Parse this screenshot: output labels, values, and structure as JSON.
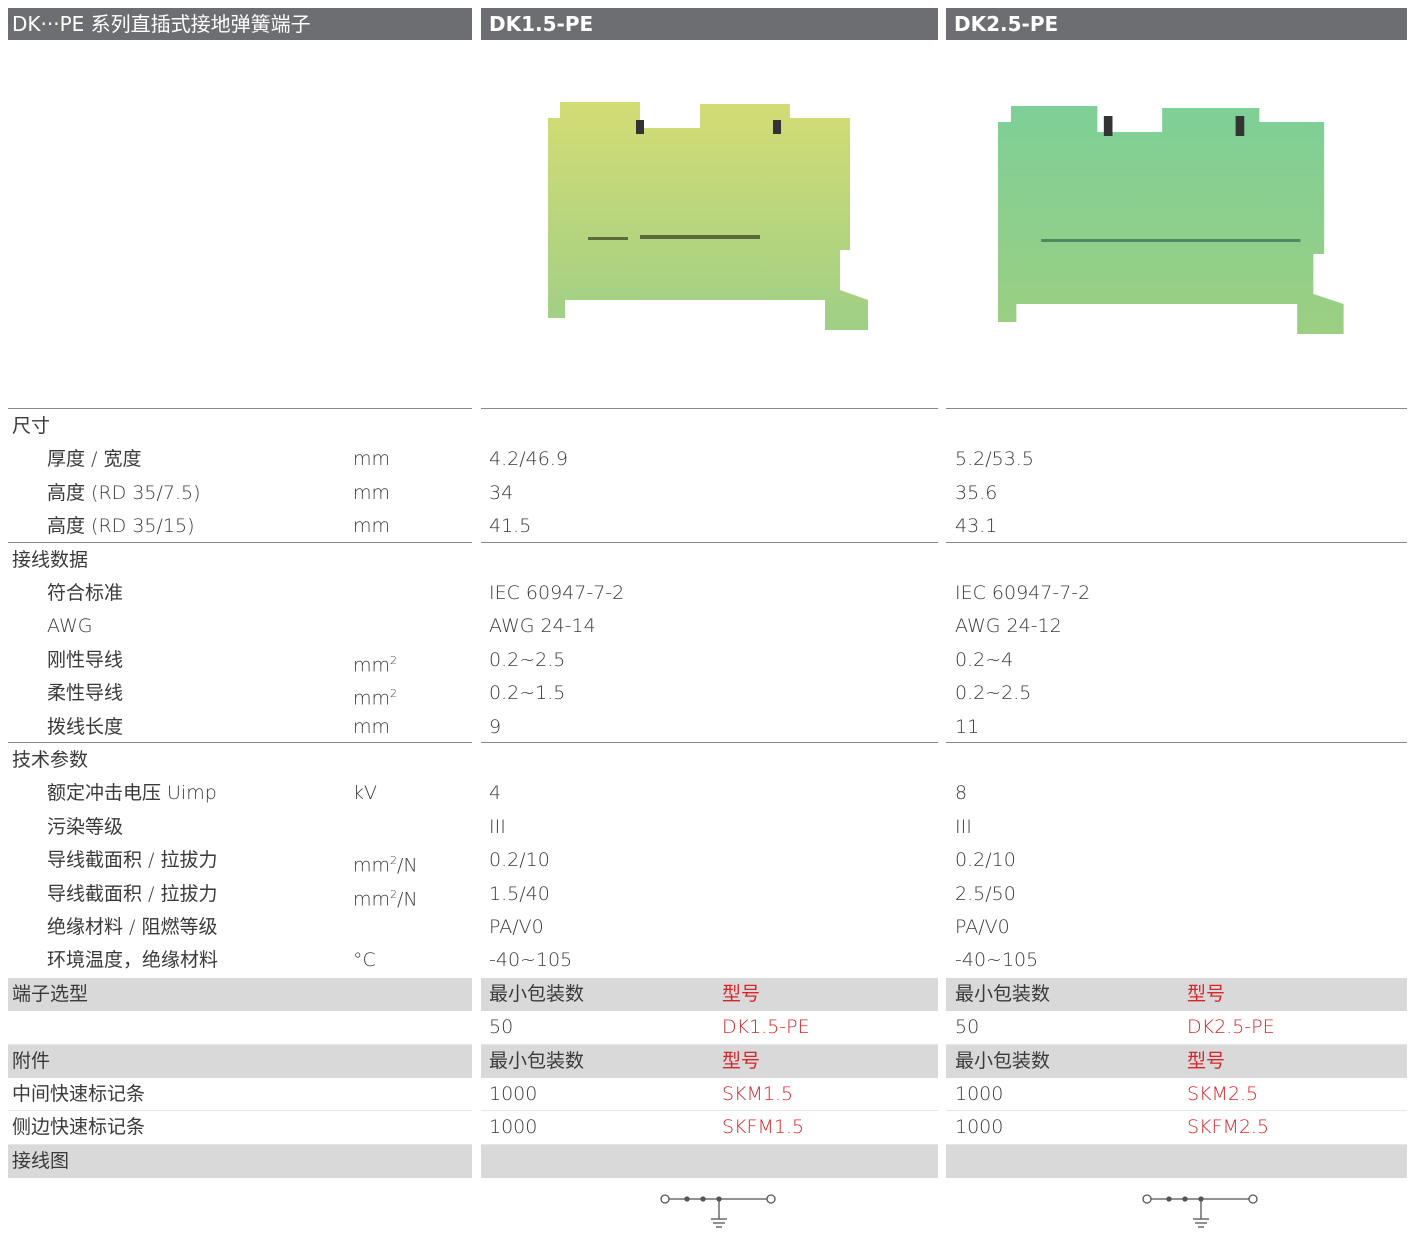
{
  "header": {
    "title": "DK···PE 系列直插式接地弹簧端子",
    "products": [
      "DK1.5-PE",
      "DK2.5-PE"
    ]
  },
  "sections": [
    {
      "title": "尺寸",
      "rows": [
        {
          "label": "厚度 / 宽度",
          "unit": "mm",
          "values": [
            "4.2/46.9",
            "5.2/53.5"
          ]
        },
        {
          "label": "高度 (RD 35/7.5)",
          "unit": "mm",
          "values": [
            "34",
            "35.6"
          ]
        },
        {
          "label": "高度 (RD 35/15)",
          "unit": "mm",
          "values": [
            "41.5",
            "43.1"
          ]
        }
      ]
    },
    {
      "title": "接线数据",
      "rows": [
        {
          "label": "符合标准",
          "values": [
            "IEC 60947-7-2",
            "IEC 60947-7-2"
          ]
        },
        {
          "label": "AWG",
          "values": [
            "AWG 24-14",
            "AWG 24-12"
          ]
        },
        {
          "label": "刚性导线",
          "unit": "mm²",
          "values": [
            "0.2~2.5",
            "0.2~4"
          ]
        },
        {
          "label": "柔性导线",
          "unit": "mm²",
          "values": [
            "0.2~1.5",
            "0.2~2.5"
          ]
        },
        {
          "label": "拨线长度",
          "unit": "mm",
          "values": [
            "9",
            "11"
          ]
        }
      ]
    },
    {
      "title": "技术参数",
      "rows": [
        {
          "label": "额定冲击电压 Uimp",
          "unit": "kV",
          "values": [
            "4",
            "8"
          ]
        },
        {
          "label": "污染等级",
          "values": [
            "III",
            "III"
          ]
        },
        {
          "label": "导线截面积 / 拉拔力",
          "unit": "mm²/N",
          "values": [
            "0.2/10",
            "0.2/10"
          ]
        },
        {
          "label": "导线截面积 / 拉拔力",
          "unit": "mm²/N",
          "values": [
            "1.5/40",
            "2.5/50"
          ]
        },
        {
          "label": "绝缘材料 / 阻燃等级",
          "values": [
            "PA/V0",
            "PA/V0"
          ]
        },
        {
          "label": "环境温度，绝缘材料",
          "unit": "°C",
          "values": [
            "-40~105",
            "-40~105"
          ]
        }
      ]
    }
  ],
  "ordering": [
    {
      "title": "端子选型",
      "columns": [
        "最小包装数",
        "型号"
      ],
      "rows": [
        {
          "values": [
            [
              "50",
              "DK1.5-PE"
            ],
            [
              "50",
              "DK2.5-PE"
            ]
          ]
        }
      ]
    },
    {
      "title": "附件",
      "columns": [
        "最小包装数",
        "型号"
      ],
      "rows": [
        {
          "label": "中间快速标记条",
          "values": [
            [
              "1000",
              "SKM1.5"
            ],
            [
              "1000",
              "SKM2.5"
            ]
          ]
        },
        {
          "label": "侧边快速标记条",
          "values": [
            [
              "1000",
              "SKFM1.5"
            ],
            [
              "1000",
              "SKFM2.5"
            ]
          ]
        }
      ]
    },
    {
      "title": "接线图"
    }
  ]
}
